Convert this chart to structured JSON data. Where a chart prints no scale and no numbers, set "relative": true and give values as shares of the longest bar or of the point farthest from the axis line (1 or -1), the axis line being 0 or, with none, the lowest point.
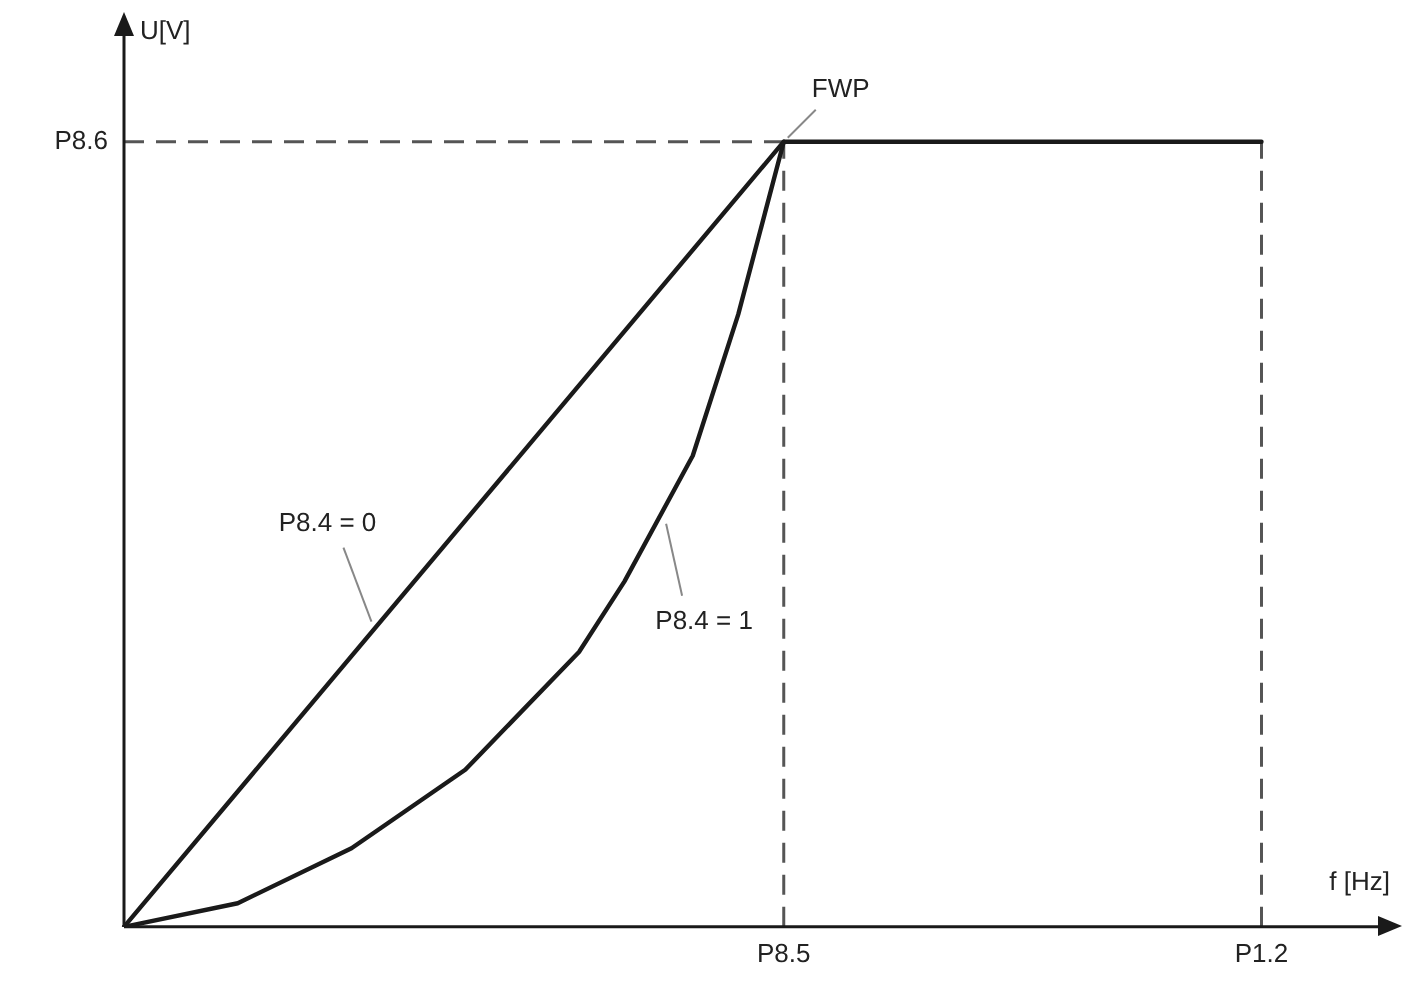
{
  "chart_data": {
    "type": "line",
    "relative": true,
    "xlabel": "f [Hz]",
    "ylabel": "U[V]",
    "categories": [
      null,
      null,
      null,
      null,
      null,
      null,
      null,
      null,
      null,
      null,
      null,
      null,
      null,
      null,
      null,
      null,
      null,
      null,
      null,
      null,
      null,
      null,
      null,
      null,
      null,
      null,
      null,
      null,
      null,
      "P8.5",
      null,
      null,
      null,
      null,
      null,
      null,
      null,
      null,
      null,
      null,
      null,
      null,
      null,
      null,
      null,
      null,
      null,
      null,
      null,
      null,
      "P1.2",
      null,
      null,
      null,
      null,
      null,
      null
    ],
    "series": [
      {
        "name": "P8.4 = 0",
        "color": "#1a1a1a",
        "values": [
          0,
          null,
          null,
          null,
          null,
          null,
          null,
          null,
          null,
          null,
          null,
          null,
          null,
          null,
          null,
          null,
          null,
          null,
          null,
          null,
          null,
          null,
          null,
          null,
          null,
          null,
          null,
          null,
          null,
          1,
          null,
          null,
          null,
          null,
          null,
          null,
          null,
          null,
          null,
          null,
          null,
          null,
          null,
          null,
          null,
          null,
          null,
          null,
          null,
          null,
          1,
          null,
          null,
          null,
          null,
          null,
          null
        ]
      },
      {
        "name": "P8.4 = 1",
        "color": "#1a1a1a",
        "values": [
          0,
          null,
          null,
          null,
          null,
          0.03,
          null,
          null,
          null,
          null,
          0.1,
          null,
          null,
          null,
          null,
          0.2,
          null,
          null,
          null,
          null,
          0.35,
          null,
          0.44,
          null,
          null,
          0.6,
          null,
          0.78,
          null,
          1,
          null,
          null,
          null,
          null,
          null,
          null,
          null,
          null,
          null,
          null,
          null,
          null,
          null,
          null,
          null,
          null,
          null,
          null,
          null,
          null,
          null,
          null,
          null,
          null,
          null,
          null,
          null
        ]
      }
    ],
    "ref_lines": [
      {
        "axis": "y",
        "value": 1,
        "label": "P8.6",
        "color": "#555555",
        "line_style": "dashed"
      },
      {
        "axis": "x",
        "value": "P8.5",
        "color": "#555555",
        "line_style": "dashed"
      },
      {
        "axis": "x",
        "value": "P1.2",
        "color": "#555555",
        "line_style": "dashed"
      }
    ],
    "annotations": [
      {
        "text": "FWP",
        "x": "P8.5",
        "y": 1
      }
    ],
    "grid": false,
    "legend": false,
    "marker": "none",
    "line_style": "solid"
  }
}
